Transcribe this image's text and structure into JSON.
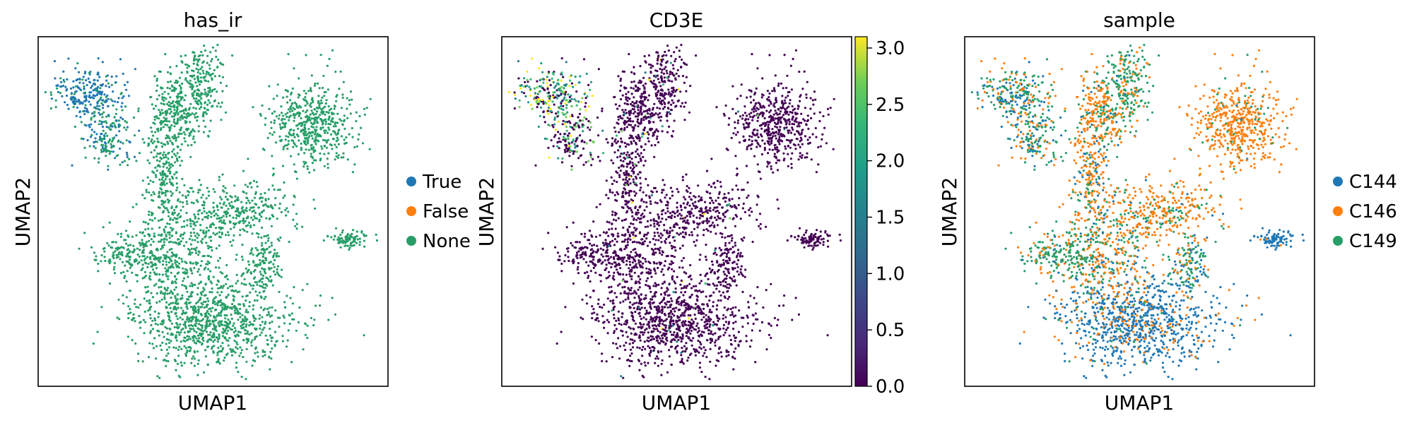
{
  "chart_data": [
    {
      "type": "scatter",
      "title": "has_ir",
      "xlabel": "UMAP1",
      "ylabel": "UMAP2",
      "color_by": "categorical",
      "legend": [
        {
          "label": "True",
          "color": "#1f77b4"
        },
        {
          "label": "False",
          "color": "#ff7f0e"
        },
        {
          "label": "None",
          "color": "#279e68"
        }
      ],
      "legend_position": "right",
      "grid": false
    },
    {
      "type": "scatter",
      "title": "CD3E",
      "xlabel": "UMAP1",
      "ylabel": "UMAP2",
      "color_by": "continuous",
      "colormap": "viridis",
      "colorbar": {
        "min": 0.0,
        "max": 3.1,
        "ticks": [
          "0.0",
          "0.5",
          "1.0",
          "1.5",
          "2.0",
          "2.5",
          "3.0"
        ]
      },
      "grid": false
    },
    {
      "type": "scatter",
      "title": "sample",
      "xlabel": "UMAP1",
      "ylabel": "UMAP2",
      "color_by": "categorical",
      "legend": [
        {
          "label": "C144",
          "color": "#1f77b4"
        },
        {
          "label": "C146",
          "color": "#ff7f0e"
        },
        {
          "label": "C149",
          "color": "#279e68"
        }
      ],
      "legend_position": "right",
      "grid": false
    }
  ]
}
